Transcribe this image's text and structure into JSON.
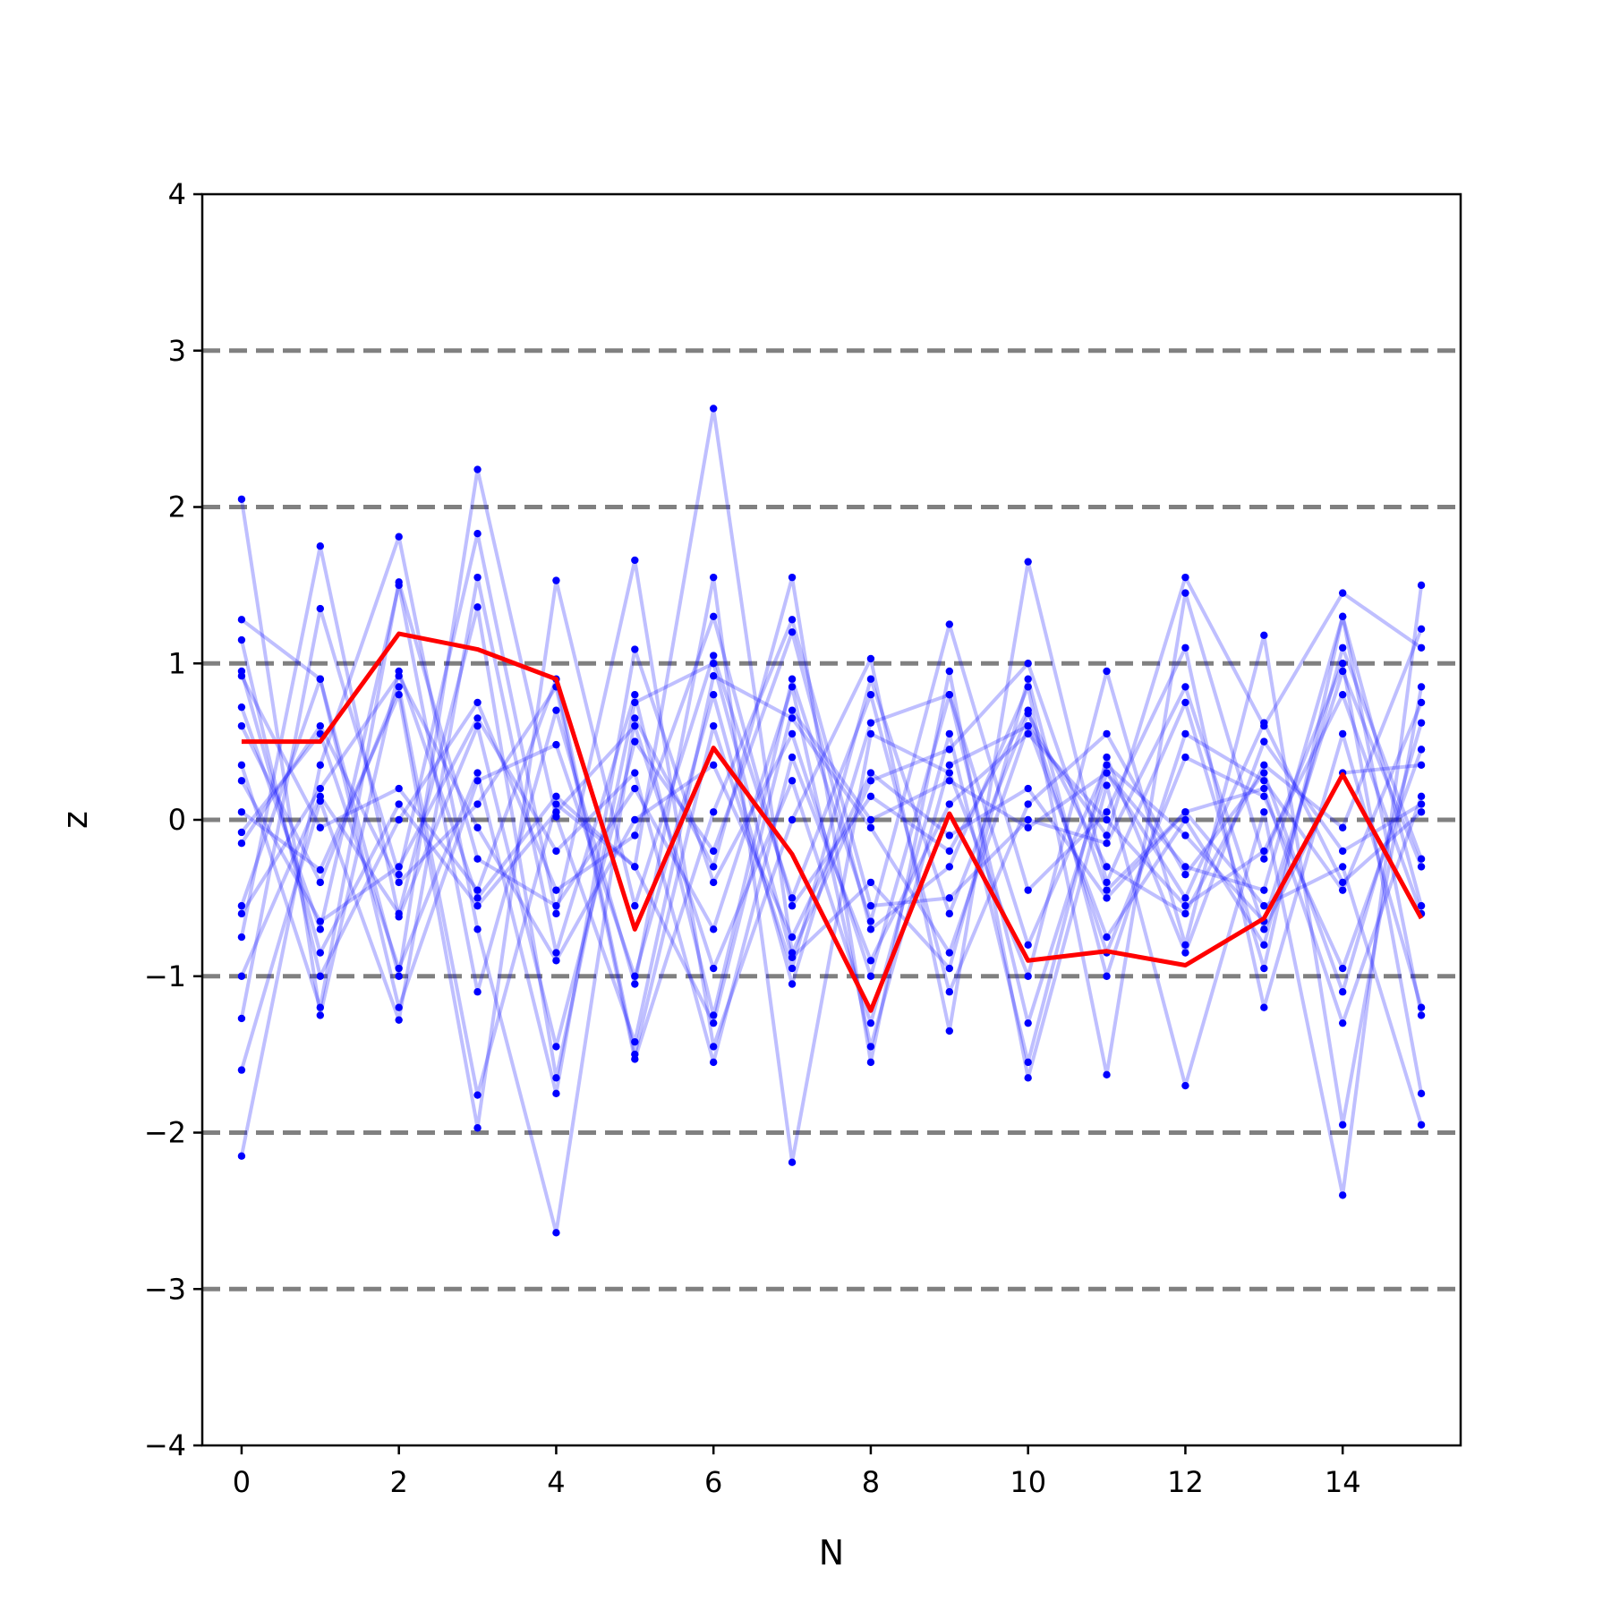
{
  "chart_data": {
    "type": "line",
    "xlabel": "N",
    "ylabel": "z",
    "xlim": [
      -0.5,
      15.5
    ],
    "ylim": [
      -4,
      4
    ],
    "x_ticks": [
      0,
      2,
      4,
      6,
      8,
      10,
      12,
      14
    ],
    "x_tick_labels": [
      "0",
      "2",
      "4",
      "6",
      "8",
      "10",
      "12",
      "14"
    ],
    "y_ticks": [
      -4,
      -3,
      -2,
      -1,
      0,
      1,
      2,
      3,
      4
    ],
    "y_tick_labels": [
      "−4",
      "−3",
      "−2",
      "−1",
      "0",
      "1",
      "2",
      "3",
      "4"
    ],
    "reference_lines": [
      -3,
      -2,
      -1,
      0,
      1,
      2,
      3
    ],
    "reference_line_style": "dashed",
    "colors": {
      "trajectories": "#0000ff",
      "highlight": "#ff0000",
      "reference": "#808080"
    },
    "x": [
      0,
      1,
      2,
      3,
      4,
      5,
      6,
      7,
      8,
      9,
      10,
      11,
      12,
      13,
      14,
      15
    ],
    "highlight_series": {
      "values": [
        0.5,
        0.5,
        1.19,
        1.09,
        0.9,
        -0.7,
        0.46,
        -0.22,
        -1.22,
        0.04,
        -0.9,
        -0.84,
        -0.93,
        -0.63,
        0.29,
        -0.63
      ]
    },
    "series": [
      {
        "values": [
          2.05,
          -1.25,
          0.95,
          -0.5,
          0.15,
          -0.3,
          2.63,
          -0.85,
          0.25,
          0.45,
          1.0,
          -0.45,
          0.05,
          -0.55,
          -0.3,
          -1.95
        ]
      },
      {
        "values": [
          1.28,
          0.9,
          -1.0,
          2.24,
          0.02,
          -1.42,
          0.92,
          0.65,
          -0.05,
          -0.85,
          0.6,
          -0.1,
          1.55,
          0.6,
          1.45,
          1.1
        ]
      },
      {
        "values": [
          -2.15,
          0.35,
          1.81,
          -0.7,
          -2.64,
          0.65,
          -0.3,
          1.55,
          -1.55,
          0.95,
          -1.65,
          0.22,
          -1.7,
          0.05,
          -2.4,
          1.5
        ]
      },
      {
        "values": [
          -1.27,
          1.35,
          -0.35,
          1.83,
          -0.6,
          1.66,
          -1.45,
          0.0,
          1.03,
          -1.35,
          1.65,
          -0.4,
          0.75,
          -0.95,
          1.3,
          -0.55
        ]
      },
      {
        "values": [
          0.72,
          -0.7,
          1.5,
          -1.1,
          0.7,
          -1.05,
          1.55,
          -2.19,
          0.55,
          0.3,
          -1.0,
          0.95,
          -0.8,
          1.18,
          -1.95,
          0.85
        ]
      },
      {
        "values": [
          -0.75,
          1.75,
          -0.62,
          0.6,
          -1.45,
          0.5,
          -0.2,
          1.2,
          -0.7,
          -0.3,
          0.85,
          -1.63,
          1.45,
          -0.25,
          1.0,
          -1.75
        ]
      },
      {
        "values": [
          0.05,
          -0.32,
          0.8,
          -1.97,
          1.53,
          -0.55,
          1.05,
          -0.5,
          0.8,
          -1.1,
          0.1,
          0.55,
          -0.35,
          0.3,
          -1.1,
          0.62
        ]
      },
      {
        "values": [
          -1.6,
          0.12,
          -1.28,
          1.55,
          -0.85,
          0.8,
          -1.25,
          0.9,
          -0.65,
          1.25,
          -0.45,
          0.05,
          1.1,
          -1.2,
          0.55,
          -1.2
        ]
      },
      {
        "values": [
          0.92,
          -0.05,
          0.2,
          -0.45,
          0.9,
          -1.5,
          0.6,
          -0.95,
          0.9,
          -0.6,
          0.68,
          -0.3,
          -0.6,
          0.35,
          -0.05,
          1.22
        ]
      },
      {
        "values": [
          -0.08,
          0.55,
          -0.95,
          0.3,
          -1.75,
          1.09,
          -0.4,
          0.55,
          -1.0,
          0.8,
          -0.8,
          0.35,
          -0.1,
          -0.65,
          0.95,
          -0.3
        ]
      },
      {
        "values": [
          1.15,
          -1.0,
          0.0,
          0.75,
          -0.45,
          -0.1,
          1.3,
          -0.55,
          0.15,
          -0.2,
          0.7,
          -0.85,
          0.4,
          0.15,
          -0.95,
          0.45
        ]
      },
      {
        "values": [
          -0.55,
          0.9,
          -1.2,
          0.25,
          0.48,
          -1.0,
          0.8,
          -1.05,
          0.62,
          0.8,
          -1.3,
          0.3,
          -0.5,
          0.62,
          -0.4,
          0.05
        ]
      },
      {
        "values": [
          0.35,
          -1.2,
          1.52,
          -0.25,
          -0.55,
          0.2,
          -0.7,
          0.85,
          -1.45,
          0.35,
          0.6,
          -0.75,
          0.0,
          -0.8,
          1.1,
          -0.25
        ]
      },
      {
        "values": [
          -1.0,
          0.15,
          -0.6,
          1.36,
          -1.65,
          0.75,
          1.0,
          -0.88,
          -0.4,
          -0.95,
          0.9,
          -1.0,
          0.55,
          0.25,
          -0.45,
          0.75
        ]
      },
      {
        "values": [
          0.6,
          -0.4,
          0.85,
          -1.76,
          0.1,
          -0.3,
          -1.3,
          0.7,
          0.0,
          0.25,
          -0.05,
          0.3,
          -0.3,
          -0.45,
          1.3,
          -1.25
        ]
      },
      {
        "values": [
          -0.15,
          0.6,
          -0.4,
          0.1,
          0.85,
          -1.53,
          0.05,
          1.28,
          -0.55,
          -0.5,
          0.0,
          -0.15,
          0.85,
          -0.7,
          0.3,
          0.35
        ]
      },
      {
        "values": [
          0.95,
          -0.85,
          0.1,
          -0.55,
          0.05,
          0.6,
          -0.95,
          0.25,
          -1.3,
          0.55,
          -1.55,
          0.4,
          -0.85,
          0.5,
          -0.2,
          0.1
        ]
      },
      {
        "values": [
          -0.6,
          0.2,
          0.92,
          -0.05,
          -0.9,
          0.0,
          0.35,
          -0.75,
          0.3,
          -0.1,
          0.2,
          -0.5,
          0.05,
          0.2,
          -1.3,
          0.15
        ]
      },
      {
        "values": [
          0.25,
          -0.65,
          -0.3,
          0.65,
          -0.2,
          0.3,
          -1.55,
          0.4,
          -0.9,
          0.1,
          0.55,
          0.0,
          -0.55,
          -0.2,
          0.8,
          -0.6
        ]
      }
    ]
  }
}
